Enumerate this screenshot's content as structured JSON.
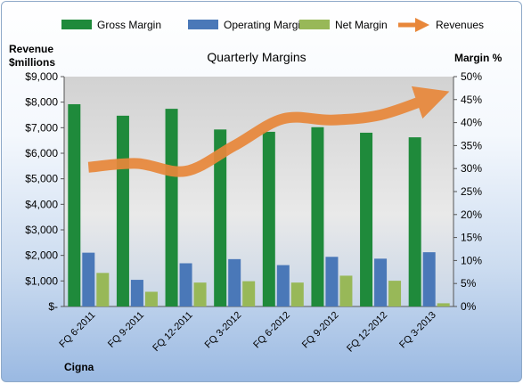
{
  "chart_data": {
    "type": "bar",
    "title": "Quarterly Margins",
    "company": "Cigna",
    "left_axis_label_line1": "Revenue",
    "left_axis_label_line2": "$millions",
    "right_axis_label": "Margin %",
    "categories": [
      "FQ 6-2011",
      "FQ 9-2011",
      "FQ 12-2011",
      "FQ 3-2012",
      "FQ 6-2012",
      "FQ 9-2012",
      "FQ 12-2012",
      "FQ 3-2013"
    ],
    "series": [
      {
        "name": "Gross Margin",
        "axis": "right",
        "color": "#1f8a3b",
        "values": [
          44,
          41.5,
          43,
          38.5,
          38,
          39,
          37.8,
          36.8
        ]
      },
      {
        "name": "Operating Margin",
        "axis": "right",
        "color": "#4a78b8",
        "values": [
          11.7,
          5.8,
          9.4,
          10.3,
          9,
          10.8,
          10.4,
          11.8
        ]
      },
      {
        "name": "Net Margin",
        "axis": "right",
        "color": "#98b858",
        "values": [
          7.3,
          3.2,
          5.2,
          5.5,
          5.2,
          6.7,
          5.6,
          0.7
        ]
      },
      {
        "name": "Revenues",
        "axis": "left",
        "type": "line",
        "color": "#e8873a",
        "values": [
          5450,
          5600,
          5300,
          6300,
          7350,
          7300,
          7500,
          8150
        ]
      }
    ],
    "left_axis": {
      "ylim": [
        0,
        9000
      ],
      "ticks": [
        "$-",
        "$1,000",
        "$2,000",
        "$3,000",
        "$4,000",
        "$5,000",
        "$6,000",
        "$7,000",
        "$8,000",
        "$9,000"
      ]
    },
    "right_axis": {
      "ylim": [
        0,
        50
      ],
      "ticks": [
        "0%",
        "5%",
        "10%",
        "15%",
        "20%",
        "25%",
        "30%",
        "35%",
        "40%",
        "45%",
        "50%"
      ]
    },
    "legend_position": "top",
    "grid": false
  }
}
